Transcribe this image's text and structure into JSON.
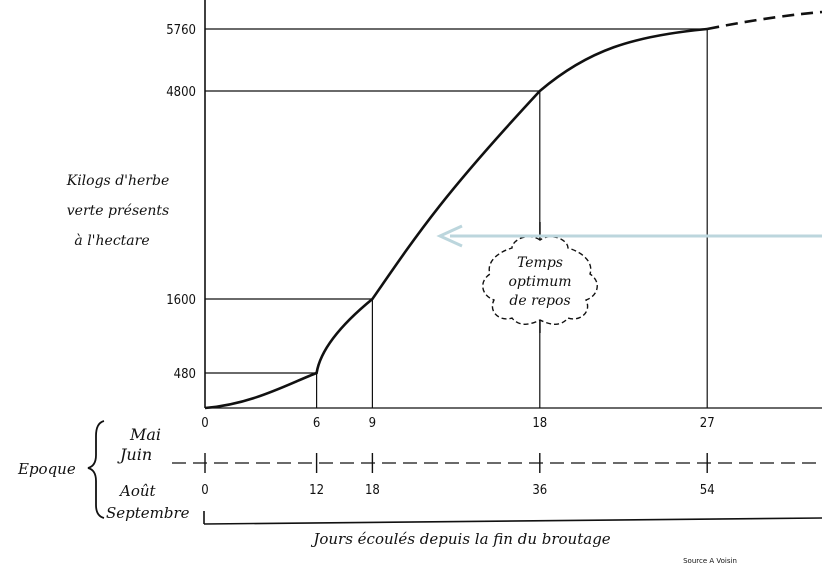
{
  "chart_data": {
    "type": "line",
    "title": "",
    "ylabel_lines": [
      "Kilogs d'herbe",
      "verte présents",
      "à l'hectare"
    ],
    "xlabel": "Jours écoulés depuis la fin du broutage",
    "y_ticks": [
      480,
      1600,
      4800,
      5760
    ],
    "x_ticks_mai_juin": [
      0,
      6,
      9,
      18,
      27
    ],
    "x_ticks_aout_sept": [
      0,
      12,
      18,
      36,
      54
    ],
    "epoque_label": "Epoque",
    "period_mai_juin": [
      "Mai",
      "Juin"
    ],
    "period_aout_sept": [
      "Août",
      "Septembre"
    ],
    "x": [
      0,
      6,
      9,
      18,
      27
    ],
    "y": [
      0,
      480,
      1600,
      4800,
      5760
    ],
    "series": [
      {
        "x": [
          0,
          6,
          9,
          18,
          27
        ],
        "y": [
          0,
          480,
          1600,
          4800,
          5760
        ]
      }
    ],
    "annotation_lines": [
      "Temps",
      "optimum",
      "de repos"
    ],
    "annotation_range_x": [
      9,
      27
    ],
    "source": "Source A Voisin",
    "colors": {
      "curve": "#111111",
      "arrow": "#bcd6dd"
    }
  }
}
